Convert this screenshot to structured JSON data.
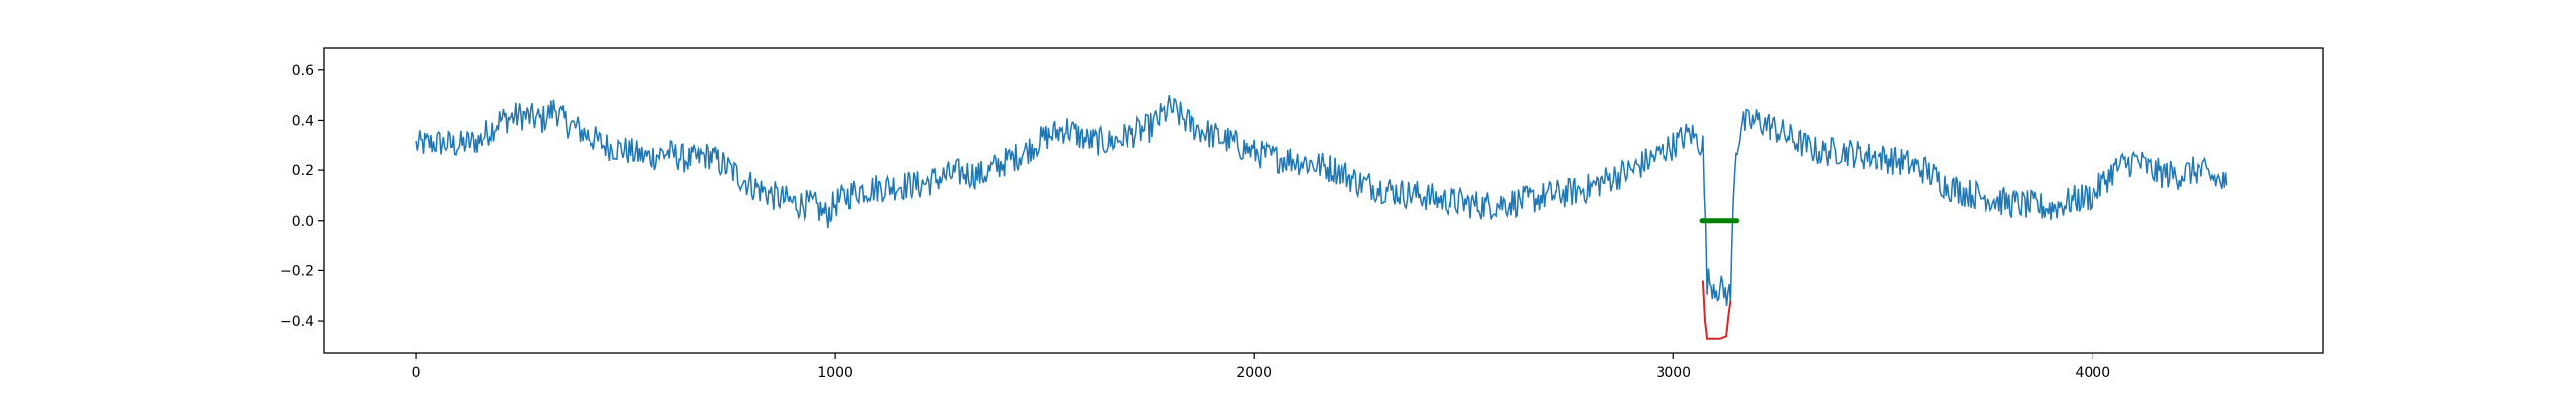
{
  "chart_data": {
    "type": "line",
    "title": "",
    "xlabel": "",
    "ylabel": "",
    "xlim": [
      -220,
      4550
    ],
    "ylim": [
      -0.53,
      0.69
    ],
    "grid": false,
    "legend": "none",
    "x_ticks": [
      {
        "value": 0,
        "label": "0"
      },
      {
        "value": 1000,
        "label": "1000"
      },
      {
        "value": 2000,
        "label": "2000"
      },
      {
        "value": 3000,
        "label": "3000"
      },
      {
        "value": 4000,
        "label": "4000"
      }
    ],
    "y_ticks": [
      {
        "value": -0.4,
        "label": "−0.4"
      },
      {
        "value": -0.2,
        "label": "−0.2"
      },
      {
        "value": 0.0,
        "label": "0.0"
      },
      {
        "value": 0.2,
        "label": "0.2"
      },
      {
        "value": 0.4,
        "label": "0.4"
      },
      {
        "value": 0.6,
        "label": "0.6"
      }
    ],
    "series": [
      {
        "kind": "signal",
        "color": "#1f77b4",
        "x": [
          0,
          50,
          100,
          150,
          200,
          250,
          300,
          330,
          350,
          400,
          450,
          500,
          550,
          600,
          650,
          700,
          750,
          800,
          850,
          900,
          950,
          980,
          1000,
          1050,
          1100,
          1150,
          1200,
          1250,
          1300,
          1350,
          1400,
          1450,
          1500,
          1550,
          1600,
          1650,
          1700,
          1750,
          1800,
          1850,
          1900,
          1950,
          2000,
          2050,
          2100,
          2150,
          2200,
          2250,
          2300,
          2350,
          2400,
          2450,
          2500,
          2550,
          2600,
          2650,
          2700,
          2750,
          2800,
          2850,
          2900,
          2950,
          3000,
          3040,
          3070,
          3080,
          3135,
          3145,
          3160,
          3200,
          3250,
          3300,
          3350,
          3400,
          3450,
          3500,
          3550,
          3600,
          3650,
          3700,
          3750,
          3800,
          3850,
          3900,
          3950,
          4000,
          4050,
          4100,
          4150,
          4200,
          4250,
          4300,
          4320
        ],
        "y": [
          0.3,
          0.31,
          0.3,
          0.32,
          0.4,
          0.42,
          0.4,
          0.45,
          0.4,
          0.35,
          0.3,
          0.28,
          0.25,
          0.27,
          0.24,
          0.26,
          0.2,
          0.14,
          0.1,
          0.07,
          0.06,
          0.02,
          0.07,
          0.12,
          0.13,
          0.14,
          0.14,
          0.17,
          0.19,
          0.18,
          0.23,
          0.27,
          0.33,
          0.37,
          0.32,
          0.31,
          0.34,
          0.37,
          0.45,
          0.38,
          0.34,
          0.31,
          0.27,
          0.25,
          0.24,
          0.22,
          0.2,
          0.15,
          0.13,
          0.11,
          0.1,
          0.08,
          0.07,
          0.06,
          0.07,
          0.08,
          0.1,
          0.11,
          0.13,
          0.17,
          0.2,
          0.25,
          0.3,
          0.35,
          0.3,
          -0.24,
          -0.3,
          0.24,
          0.38,
          0.4,
          0.36,
          0.31,
          0.27,
          0.28,
          0.26,
          0.25,
          0.23,
          0.2,
          0.14,
          0.11,
          0.09,
          0.07,
          0.06,
          0.05,
          0.08,
          0.1,
          0.2,
          0.24,
          0.19,
          0.18,
          0.2,
          0.16,
          0.14
        ]
      },
      {
        "kind": "anomaly",
        "color": "#d62728",
        "x": [
          3070,
          3075,
          3080,
          3090,
          3110,
          3125,
          3130,
          3135
        ],
        "y": [
          -0.24,
          -0.4,
          -0.47,
          -0.47,
          -0.47,
          -0.46,
          -0.38,
          -0.32
        ]
      },
      {
        "kind": "marker",
        "color": "#008000",
        "x": [
          3068,
          3150
        ],
        "y": [
          0.0,
          0.0
        ]
      }
    ]
  }
}
